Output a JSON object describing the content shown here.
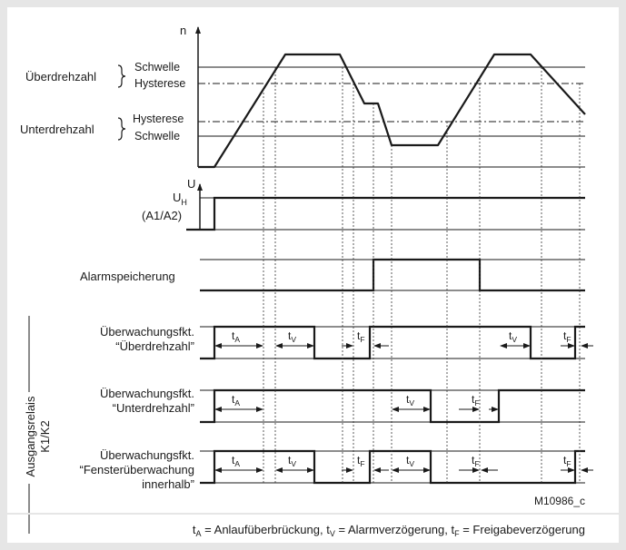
{
  "axis": {
    "n": "n",
    "u": "U"
  },
  "speed": {
    "over_label": "Überdrehzahl",
    "under_label": "Unterdrehzahl",
    "schwelle": "Schwelle",
    "hysterese": "Hysterese"
  },
  "supply": {
    "label_main": "U",
    "label_sub": "H",
    "label_pins": "(A1/A2)"
  },
  "alarm_label": "Alarmspeicherung",
  "relay_side_label": "Ausgangsrelais K1/K2",
  "relay_side_line1": "Ausgangsrelais",
  "relay_side_line2": "K1/K2",
  "relays": [
    {
      "line1": "Überwachungsfkt.",
      "line2": "“Überdrehzahl”",
      "line3": ""
    },
    {
      "line1": "Überwachungsfkt.",
      "line2": "“Unterdrehzahl”",
      "line3": ""
    },
    {
      "line1": "Überwachungsfkt.",
      "line2": "“Fensterüberwachung",
      "line3": "innerhalb”"
    }
  ],
  "timing_labels": {
    "tA": {
      "main": "t",
      "sub": "A"
    },
    "tV": {
      "main": "t",
      "sub": "V"
    },
    "tF": {
      "main": "t",
      "sub": "F"
    }
  },
  "figure_id": "M10986_c",
  "legend": {
    "tA_text": "= Anlaufüberbrückung,",
    "tV_text": "= Alarmverzögerung,",
    "tF_text": "= Freigabeverzögerung"
  },
  "colors": {
    "background": "#e6e6e6",
    "panel": "#ffffff",
    "ink": "#1a1a1a"
  }
}
